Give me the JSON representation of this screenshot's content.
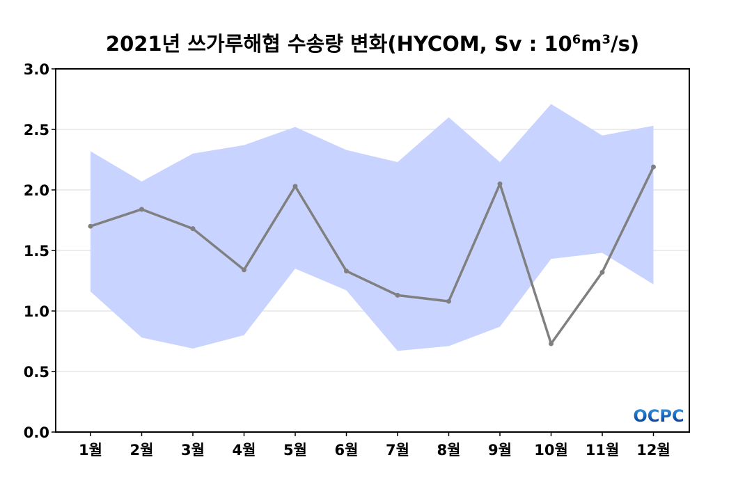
{
  "chart_data": {
    "type": "line",
    "title": "2021년 쓰가루해협 수송량 변화(HYCOM, Sv : 10",
    "title_sup1": "6",
    "title_mid": "m",
    "title_sup2": "3",
    "title_end": "/s)",
    "categories": [
      "1월",
      "2월",
      "3월",
      "4월",
      "5월",
      "6월",
      "7월",
      "8월",
      "9월",
      "10월",
      "11월",
      "12월"
    ],
    "series": [
      {
        "name": "수송량",
        "color": "#808080",
        "values": [
          1.7,
          1.84,
          1.68,
          1.34,
          2.03,
          1.33,
          1.13,
          1.08,
          2.05,
          0.73,
          1.32,
          2.19
        ]
      }
    ],
    "band": {
      "color": "#c8d4ff",
      "upper": [
        2.32,
        2.07,
        2.3,
        2.37,
        2.52,
        2.33,
        2.23,
        2.6,
        2.23,
        2.71,
        2.45,
        2.53
      ],
      "lower": [
        1.16,
        0.78,
        0.69,
        0.8,
        1.35,
        1.17,
        0.67,
        0.71,
        0.87,
        1.43,
        1.48,
        1.22
      ]
    },
    "yticks": [
      "0.0",
      "0.5",
      "1.0",
      "1.5",
      "2.0",
      "2.5",
      "3.0"
    ],
    "ylim": [
      0,
      3.0
    ],
    "grid": true,
    "xlabel": "",
    "ylabel": ""
  },
  "logo": "OCPC"
}
